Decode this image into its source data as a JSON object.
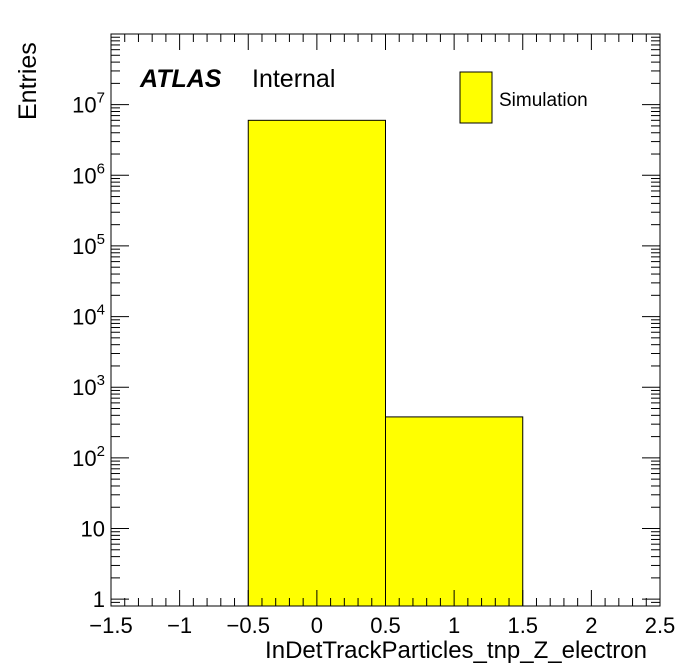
{
  "chart_data": {
    "type": "bar",
    "title": "",
    "xlabel": "InDetTrackParticles_tnp_Z_electron",
    "ylabel": "Entries",
    "bins": [
      {
        "x_low": -0.5,
        "x_high": 0.5,
        "value": 6000000
      },
      {
        "x_low": 0.5,
        "x_high": 1.5,
        "value": 380
      }
    ],
    "xlim": [
      -1.5,
      2.5
    ],
    "ylim": [
      0.8,
      100000000
    ],
    "y_scale": "log",
    "grid": false,
    "x_ticks": [
      {
        "value": -1.5,
        "label": "−1.5"
      },
      {
        "value": -1,
        "label": "−1"
      },
      {
        "value": -0.5,
        "label": "−0.5"
      },
      {
        "value": 0,
        "label": "0"
      },
      {
        "value": 0.5,
        "label": "0.5"
      },
      {
        "value": 1,
        "label": "1"
      },
      {
        "value": 1.5,
        "label": "1.5"
      },
      {
        "value": 2,
        "label": "2"
      },
      {
        "value": 2.5,
        "label": "2.5"
      }
    ],
    "y_ticks": [
      {
        "value": 1,
        "base": "1",
        "exp": ""
      },
      {
        "value": 10,
        "base": "10",
        "exp": ""
      },
      {
        "value": 100,
        "base": "10",
        "exp": "2"
      },
      {
        "value": 1000,
        "base": "10",
        "exp": "3"
      },
      {
        "value": 10000,
        "base": "10",
        "exp": "4"
      },
      {
        "value": 100000,
        "base": "10",
        "exp": "5"
      },
      {
        "value": 1000000,
        "base": "10",
        "exp": "6"
      },
      {
        "value": 10000000,
        "base": "10",
        "exp": "7"
      }
    ],
    "legend": {
      "position": "top-right",
      "entries": [
        {
          "name": "Simulation",
          "color": "#ffff00"
        }
      ]
    },
    "label": {
      "experiment": "ATLAS",
      "status": "Internal"
    },
    "colors": {
      "fill": "#ffff00",
      "edge": "#000000"
    }
  }
}
